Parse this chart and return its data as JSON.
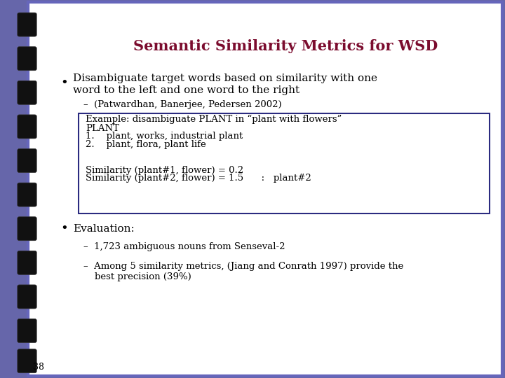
{
  "title": "Semantic Similarity Metrics for WSD",
  "title_color": "#7B0C2E",
  "background_color": "#FFFFFF",
  "border_color": "#6666BB",
  "slide_bg": "#6666AA",
  "bullet1_line1": "Disambiguate target words based on similarity with one",
  "bullet1_line2": "word to the left and one word to the right",
  "sub1": "(Patwardhan, Banerjee, Pedersen 2002)",
  "box_lines": [
    "Example: disambiguate PLANT in “plant with flowers”",
    "PLANT",
    "1.    plant, works, industrial plant",
    "2.    plant, flora, plant life",
    "",
    "Similarity (plant#1, flower) = 0.2",
    "Similarity (plant#2, flower) = 1.5      :   plant#2"
  ],
  "bullet2": "Evaluation:",
  "sub2a": "1,723 ambiguous nouns from Senseval-2",
  "sub2b_line1": "Among 5 similarity metrics, (Jiang and Conrath 1997) provide the",
  "sub2b_line2": "best precision (39%)",
  "page_num": "38",
  "tab_color": "#111111",
  "text_color": "#000000",
  "box_border_color": "#2B2B80"
}
